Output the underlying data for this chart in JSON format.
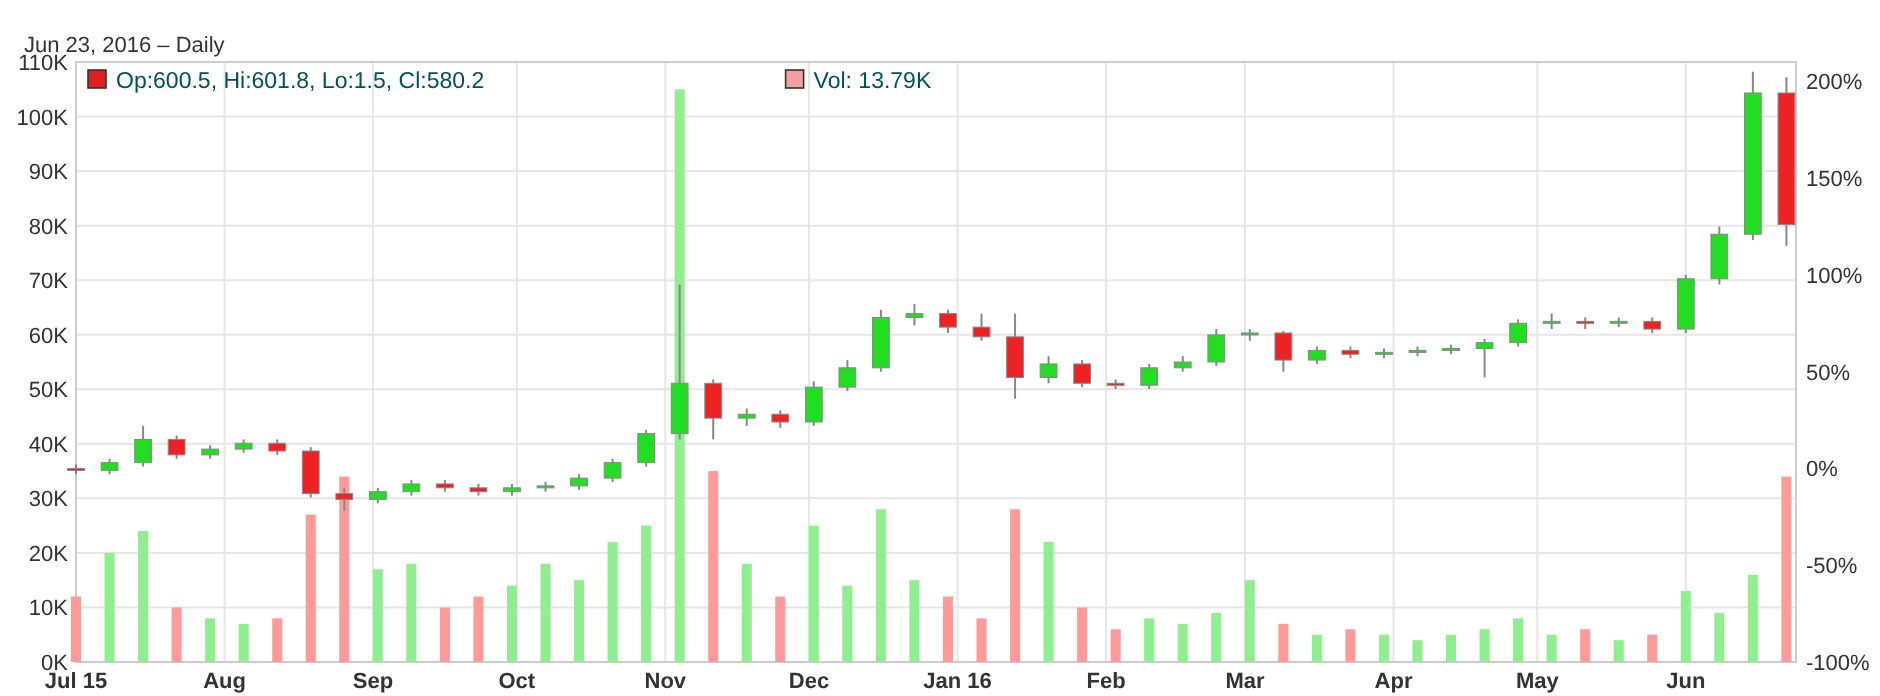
{
  "chart_data": {
    "type": "candlestick",
    "subtitle": "Jun 23, 2016 – Daily",
    "x": [
      "2015-07-01",
      "2015-07-08",
      "2015-07-15",
      "2015-07-22",
      "2015-07-29",
      "2015-08-05",
      "2015-08-12",
      "2015-08-19",
      "2015-08-26",
      "2015-09-02",
      "2015-09-09",
      "2015-09-16",
      "2015-09-23",
      "2015-09-30",
      "2015-10-07",
      "2015-10-14",
      "2015-10-21",
      "2015-10-28",
      "2015-11-04",
      "2015-11-11",
      "2015-11-18",
      "2015-11-25",
      "2015-12-02",
      "2015-12-09",
      "2015-12-16",
      "2015-12-23",
      "2015-12-30",
      "2016-01-06",
      "2016-01-13",
      "2016-01-20",
      "2016-01-27",
      "2016-02-03",
      "2016-02-10",
      "2016-02-17",
      "2016-02-24",
      "2016-03-02",
      "2016-03-09",
      "2016-03-16",
      "2016-03-23",
      "2016-03-30",
      "2016-04-06",
      "2016-04-13",
      "2016-04-20",
      "2016-04-27",
      "2016-05-04",
      "2016-05-11",
      "2016-05-18",
      "2016-05-25",
      "2016-06-01",
      "2016-06-08",
      "2016-06-15",
      "2016-06-22"
    ],
    "series": [
      {
        "axis": "y2",
        "name": "Op:600.5, Hi:601.8, Lo:1.5, Cl:580.2",
        "color": "#e02020",
        "ohlc": [
          [
            0,
            2,
            -3,
            -1
          ],
          [
            -1,
            5,
            -3,
            3
          ],
          [
            3,
            22,
            1,
            15
          ],
          [
            15,
            17,
            5,
            7
          ],
          [
            7,
            12,
            5,
            10
          ],
          [
            10,
            15,
            8,
            13
          ],
          [
            13,
            15,
            7,
            9
          ],
          [
            9,
            11,
            -15,
            -13
          ],
          [
            -13,
            -10,
            -22,
            -16
          ],
          [
            -16,
            -10,
            -18,
            -12
          ],
          [
            -12,
            -6,
            -14,
            -8
          ],
          [
            -8,
            -6,
            -12,
            -10
          ],
          [
            -10,
            -8,
            -14,
            -12
          ],
          [
            -12,
            -8,
            -14,
            -10
          ],
          [
            -10,
            -7,
            -12,
            -9
          ],
          [
            -9,
            -3,
            -11,
            -5
          ],
          [
            -5,
            5,
            -7,
            3
          ],
          [
            3,
            20,
            1,
            18
          ],
          [
            18,
            95,
            15,
            44
          ],
          [
            44,
            46,
            15,
            26
          ],
          [
            26,
            31,
            22,
            28
          ],
          [
            28,
            30,
            21,
            24
          ],
          [
            24,
            45,
            22,
            42
          ],
          [
            42,
            56,
            40,
            52
          ],
          [
            52,
            82,
            50,
            78
          ],
          [
            78,
            85,
            74,
            80
          ],
          [
            80,
            82,
            70,
            73
          ],
          [
            73,
            80,
            66,
            68
          ],
          [
            68,
            80,
            36,
            47
          ],
          [
            47,
            58,
            44,
            54
          ],
          [
            54,
            56,
            42,
            44
          ],
          [
            44,
            46,
            41,
            43
          ],
          [
            43,
            54,
            41,
            52
          ],
          [
            52,
            58,
            50,
            55
          ],
          [
            55,
            72,
            53,
            69
          ],
          [
            69,
            72,
            66,
            70
          ],
          [
            70,
            71,
            50,
            56
          ],
          [
            56,
            63,
            54,
            61
          ],
          [
            61,
            63,
            57,
            59
          ],
          [
            59,
            62,
            57,
            60
          ],
          [
            60,
            63,
            58,
            61
          ],
          [
            61,
            64,
            59,
            62
          ],
          [
            62,
            67,
            47,
            65
          ],
          [
            65,
            77,
            63,
            75
          ],
          [
            75,
            80,
            72,
            76
          ],
          [
            76,
            78,
            72,
            75
          ],
          [
            75,
            78,
            73,
            76
          ],
          [
            76,
            78,
            70,
            72
          ],
          [
            72,
            100,
            70,
            98
          ],
          [
            98,
            125,
            95,
            121
          ],
          [
            121,
            205,
            118,
            194
          ],
          [
            194,
            202,
            115,
            126
          ]
        ],
        "colors": [
          "#ee2222",
          "#22dd22",
          "#22dd22",
          "#ee2222",
          "#22dd22",
          "#22dd22",
          "#ee2222",
          "#ee2222",
          "#ee2222",
          "#22dd22",
          "#22dd22",
          "#ee2222",
          "#ee2222",
          "#22dd22",
          "#22dd22",
          "#22dd22",
          "#22dd22",
          "#22dd22",
          "#22dd22",
          "#ee2222",
          "#22dd22",
          "#ee2222",
          "#22dd22",
          "#22dd22",
          "#22dd22",
          "#22dd22",
          "#ee2222",
          "#ee2222",
          "#ee2222",
          "#22dd22",
          "#ee2222",
          "#ee2222",
          "#22dd22",
          "#22dd22",
          "#22dd22",
          "#22dd22",
          "#ee2222",
          "#22dd22",
          "#ee2222",
          "#22dd22",
          "#22dd22",
          "#22dd22",
          "#22dd22",
          "#22dd22",
          "#22dd22",
          "#ee2222",
          "#22dd22",
          "#ee2222",
          "#22dd22",
          "#22dd22",
          "#22dd22",
          "#ee2222"
        ]
      },
      {
        "type": "bar",
        "axis": "y",
        "name": "Vol: 13.79K",
        "color": "#f4a0a0",
        "values": [
          12,
          20,
          24,
          10,
          8,
          7,
          8,
          27,
          34,
          17,
          18,
          10,
          12,
          14,
          18,
          15,
          22,
          25,
          105,
          35,
          18,
          12,
          25,
          14,
          28,
          15,
          12,
          8,
          28,
          22,
          10,
          6,
          8,
          7,
          9,
          15,
          7,
          5,
          6,
          5,
          4,
          5,
          6,
          8,
          5,
          6,
          4,
          5,
          13,
          9,
          16,
          34
        ],
        "colors": [
          "#ff9a9a",
          "#90ee90",
          "#90ee90",
          "#ff9a9a",
          "#90ee90",
          "#90ee90",
          "#ff9a9a",
          "#ff9a9a",
          "#ff9a9a",
          "#90ee90",
          "#90ee90",
          "#ff9a9a",
          "#ff9a9a",
          "#90ee90",
          "#90ee90",
          "#90ee90",
          "#90ee90",
          "#90ee90",
          "#90ee90",
          "#ff9a9a",
          "#90ee90",
          "#ff9a9a",
          "#90ee90",
          "#90ee90",
          "#90ee90",
          "#90ee90",
          "#ff9a9a",
          "#ff9a9a",
          "#ff9a9a",
          "#90ee90",
          "#ff9a9a",
          "#ff9a9a",
          "#90ee90",
          "#90ee90",
          "#90ee90",
          "#90ee90",
          "#ff9a9a",
          "#90ee90",
          "#ff9a9a",
          "#90ee90",
          "#90ee90",
          "#90ee90",
          "#90ee90",
          "#90ee90",
          "#90ee90",
          "#ff9a9a",
          "#90ee90",
          "#ff9a9a",
          "#90ee90",
          "#90ee90",
          "#90ee90",
          "#ff9a9a"
        ]
      }
    ],
    "xlim": [
      "2015-07-01",
      "2016-06-24"
    ],
    "xticks": [
      {
        "value": "2015-07-01",
        "label": "Jul 15"
      },
      {
        "value": "2015-08-01",
        "label": "Aug"
      },
      {
        "value": "2015-09-01",
        "label": "Sep"
      },
      {
        "value": "2015-10-01",
        "label": "Oct"
      },
      {
        "value": "2015-11-01",
        "label": "Nov"
      },
      {
        "value": "2015-12-01",
        "label": "Dec"
      },
      {
        "value": "2016-01-01",
        "label": "Jan 16"
      },
      {
        "value": "2016-02-01",
        "label": "Feb"
      },
      {
        "value": "2016-03-01",
        "label": "Mar"
      },
      {
        "value": "2016-04-01",
        "label": "Apr"
      },
      {
        "value": "2016-05-01",
        "label": "May"
      },
      {
        "value": "2016-06-01",
        "label": "Jun"
      }
    ],
    "ylim": [
      0,
      110
    ],
    "yticks": [
      {
        "value": 0,
        "label": "0K"
      },
      {
        "value": 10,
        "label": "10K"
      },
      {
        "value": 20,
        "label": "20K"
      },
      {
        "value": 30,
        "label": "30K"
      },
      {
        "value": 40,
        "label": "40K"
      },
      {
        "value": 50,
        "label": "50K"
      },
      {
        "value": 60,
        "label": "60K"
      },
      {
        "value": 70,
        "label": "70K"
      },
      {
        "value": 80,
        "label": "80K"
      },
      {
        "value": 90,
        "label": "90K"
      },
      {
        "value": 100,
        "label": "100K"
      },
      {
        "value": 110,
        "label": "110K"
      }
    ],
    "y2lim": [
      -100,
      210
    ],
    "y2ticks": [
      {
        "value": -100,
        "label": "-100%"
      },
      {
        "value": -50,
        "label": "-50%"
      },
      {
        "value": 0,
        "label": "0%"
      },
      {
        "value": 50,
        "label": "50%"
      },
      {
        "value": 100,
        "label": "100%"
      },
      {
        "value": 150,
        "label": "150%"
      },
      {
        "value": 200,
        "label": "200%"
      }
    ],
    "grid": true,
    "legend": "top left"
  }
}
